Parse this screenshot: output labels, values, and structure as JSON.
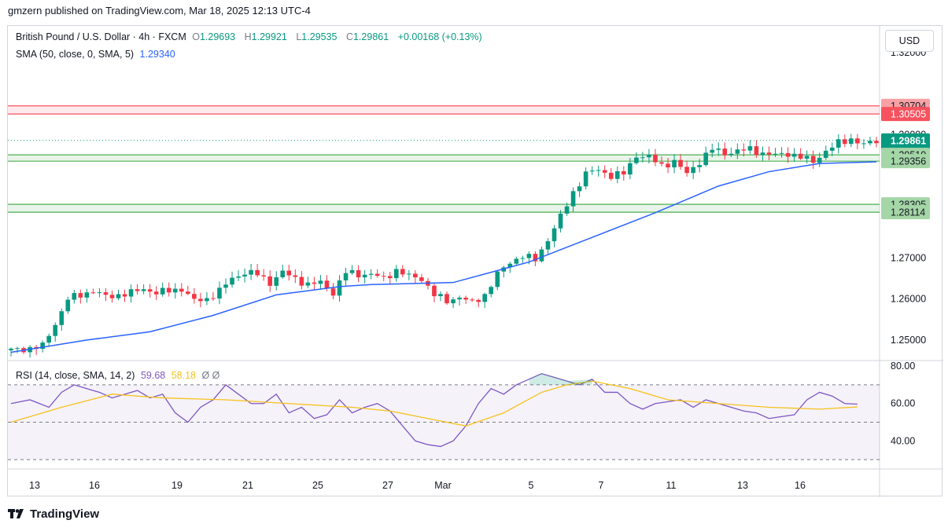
{
  "header": {
    "publisher_text": "gmzern published on TradingView.com, Mar 18, 2025 12:13 UTC-4"
  },
  "legend": {
    "symbol": "British Pound / U.S. Dollar · 4h · FXCM",
    "open_label": "O",
    "open": "1.29693",
    "high_label": "H",
    "high": "1.29921",
    "low_label": "L",
    "low": "1.29535",
    "close_label": "C",
    "close": "1.29861",
    "change": "+0.00168 (+0.13%)",
    "sma_label": "SMA (50, close, 0, SMA, 5)",
    "sma_value": "1.29340",
    "rsi_label": "RSI (14, close, SMA, 14, 2)",
    "rsi_value": "59.68",
    "rsi_sma_value": "58.18",
    "rsi_extra": "Ø  Ø"
  },
  "currency_button": "USD",
  "price_axis": {
    "ticks": [
      "1.32000",
      "1.27000",
      "1.26000",
      "1.25000"
    ],
    "hidden_tick": "1.30000",
    "labels": [
      {
        "text": "1.30704",
        "bg": "#f7a1a4",
        "color": "#131722",
        "price": 1.30704
      },
      {
        "text": "1.30505",
        "bg": "#f7525f",
        "color": "#ffffff",
        "price": 1.30505
      },
      {
        "text": "1.29861",
        "bg": "#089981",
        "color": "#ffffff",
        "price": 1.29861
      },
      {
        "text": "46:58",
        "bg": "#089981",
        "color": "#ffffff",
        "price": 1.2957
      },
      {
        "text": "1.29510",
        "bg": "#a5d6a7",
        "color": "#131722",
        "price": 1.2951
      },
      {
        "text": "1.29356",
        "bg": "#a5d6a7",
        "color": "#131722",
        "price": 1.29356
      },
      {
        "text": "1.28305",
        "bg": "#a5d6a7",
        "color": "#131722",
        "price": 1.28305
      },
      {
        "text": "1.28114",
        "bg": "#a5d6a7",
        "color": "#131722",
        "price": 1.28114
      }
    ]
  },
  "rsi_axis": {
    "ticks": [
      "80.00",
      "60.00",
      "40.00"
    ]
  },
  "time_axis": {
    "labels": [
      "13",
      "16",
      "19",
      "21",
      "25",
      "27",
      "Mar",
      "5",
      "7",
      "11",
      "13",
      "16"
    ]
  },
  "colors": {
    "up": "#089981",
    "down": "#f23645",
    "sma": "#2962ff",
    "rsi": "#7e57c2",
    "rsi_sma": "#f7c21b",
    "red_zone": "#f7525f",
    "green_zone": "#4caf50"
  },
  "chart_data": {
    "type": "candlestick",
    "symbol": "GBPUSD",
    "timeframe": "4h",
    "ylim": [
      1.245,
      1.3265
    ],
    "zones": [
      {
        "from": 1.30505,
        "to": 1.30704,
        "color": "red"
      },
      {
        "from": 1.29356,
        "to": 1.2951,
        "color": "green"
      },
      {
        "from": 1.28114,
        "to": 1.28305,
        "color": "green"
      }
    ],
    "last_close": 1.29861,
    "price_path": [
      [
        0,
        1.2475
      ],
      [
        3,
        1.248
      ],
      [
        5,
        1.2485
      ],
      [
        7,
        1.254
      ],
      [
        9,
        1.26
      ],
      [
        11,
        1.261
      ],
      [
        13,
        1.262
      ],
      [
        15,
        1.2605
      ],
      [
        17,
        1.261
      ],
      [
        19,
        1.2615
      ],
      [
        21,
        1.2625
      ],
      [
        23,
        1.2615
      ],
      [
        25,
        1.262
      ],
      [
        27,
        1.2625
      ],
      [
        29,
        1.2595
      ],
      [
        31,
        1.26
      ],
      [
        33,
        1.262
      ],
      [
        35,
        1.265
      ],
      [
        37,
        1.2665
      ],
      [
        39,
        1.266
      ],
      [
        41,
        1.264
      ],
      [
        43,
        1.2665
      ],
      [
        45,
        1.265
      ],
      [
        47,
        1.2635
      ],
      [
        49,
        1.264
      ],
      [
        51,
        1.2615
      ],
      [
        53,
        1.2665
      ],
      [
        55,
        1.266
      ],
      [
        57,
        1.266
      ],
      [
        59,
        1.265
      ],
      [
        61,
        1.267
      ],
      [
        63,
        1.2655
      ],
      [
        65,
        1.265
      ],
      [
        67,
        1.261
      ],
      [
        69,
        1.2595
      ],
      [
        71,
        1.2605
      ],
      [
        73,
        1.259
      ],
      [
        75,
        1.261
      ],
      [
        77,
        1.266
      ],
      [
        79,
        1.269
      ],
      [
        81,
        1.2705
      ],
      [
        83,
        1.2695
      ],
      [
        85,
        1.2745
      ],
      [
        87,
        1.28
      ],
      [
        89,
        1.286
      ],
      [
        91,
        1.2905
      ],
      [
        93,
        1.2915
      ],
      [
        95,
        1.29
      ],
      [
        97,
        1.2905
      ],
      [
        99,
        1.295
      ],
      [
        101,
        1.2945
      ],
      [
        103,
        1.2925
      ],
      [
        105,
        1.2935
      ],
      [
        107,
        1.2905
      ],
      [
        109,
        1.2935
      ],
      [
        111,
        1.2965
      ],
      [
        113,
        1.2955
      ],
      [
        115,
        1.296
      ],
      [
        117,
        1.2965
      ],
      [
        119,
        1.2955
      ],
      [
        121,
        1.295
      ],
      [
        123,
        1.2955
      ],
      [
        125,
        1.2945
      ],
      [
        127,
        1.2935
      ],
      [
        129,
        1.296
      ],
      [
        131,
        1.298
      ],
      [
        133,
        1.299
      ],
      [
        135,
        1.2975
      ],
      [
        137,
        1.2986
      ]
    ],
    "sma50_path": [
      [
        0,
        1.247
      ],
      [
        12,
        1.25
      ],
      [
        22,
        1.252
      ],
      [
        32,
        1.256
      ],
      [
        42,
        1.261
      ],
      [
        52,
        1.263
      ],
      [
        57,
        1.2635
      ],
      [
        70,
        1.264
      ],
      [
        82,
        1.269
      ],
      [
        92,
        1.275
      ],
      [
        102,
        1.281
      ],
      [
        112,
        1.2875
      ],
      [
        120,
        1.291
      ],
      [
        128,
        1.293
      ],
      [
        137,
        1.2934
      ]
    ],
    "rsi": {
      "levels": [
        70,
        50,
        30
      ],
      "ylim": [
        25,
        83
      ],
      "path": [
        [
          0,
          60
        ],
        [
          3,
          62
        ],
        [
          6,
          58
        ],
        [
          8,
          66
        ],
        [
          10,
          70
        ],
        [
          12,
          68
        ],
        [
          14,
          66
        ],
        [
          16,
          63
        ],
        [
          18,
          65
        ],
        [
          20,
          67
        ],
        [
          22,
          63
        ],
        [
          24,
          65
        ],
        [
          26,
          55
        ],
        [
          28,
          50
        ],
        [
          30,
          58
        ],
        [
          32,
          62
        ],
        [
          34,
          70
        ],
        [
          36,
          65
        ],
        [
          38,
          60
        ],
        [
          40,
          60
        ],
        [
          42,
          65
        ],
        [
          44,
          55
        ],
        [
          46,
          58
        ],
        [
          48,
          52
        ],
        [
          50,
          54
        ],
        [
          52,
          62
        ],
        [
          54,
          55
        ],
        [
          56,
          58
        ],
        [
          58,
          60
        ],
        [
          60,
          56
        ],
        [
          62,
          48
        ],
        [
          64,
          40
        ],
        [
          66,
          38
        ],
        [
          68,
          37
        ],
        [
          70,
          40
        ],
        [
          72,
          48
        ],
        [
          74,
          60
        ],
        [
          76,
          68
        ],
        [
          78,
          65
        ],
        [
          80,
          70
        ],
        [
          82,
          73
        ],
        [
          84,
          76
        ],
        [
          86,
          74
        ],
        [
          88,
          72
        ],
        [
          90,
          70
        ],
        [
          92,
          73
        ],
        [
          94,
          66
        ],
        [
          96,
          66
        ],
        [
          98,
          60
        ],
        [
          100,
          57
        ],
        [
          102,
          60
        ],
        [
          104,
          61
        ],
        [
          106,
          62
        ],
        [
          108,
          58
        ],
        [
          110,
          62
        ],
        [
          112,
          60
        ],
        [
          114,
          58
        ],
        [
          116,
          56
        ],
        [
          118,
          55
        ],
        [
          120,
          52
        ],
        [
          122,
          53
        ],
        [
          124,
          54
        ],
        [
          126,
          62
        ],
        [
          128,
          66
        ],
        [
          130,
          64
        ],
        [
          132,
          60
        ],
        [
          134,
          59.68
        ]
      ],
      "sma_path": [
        [
          0,
          50
        ],
        [
          8,
          58
        ],
        [
          16,
          65
        ],
        [
          24,
          63
        ],
        [
          34,
          62
        ],
        [
          44,
          60
        ],
        [
          54,
          58
        ],
        [
          60,
          56
        ],
        [
          66,
          52
        ],
        [
          72,
          48
        ],
        [
          78,
          55
        ],
        [
          84,
          66
        ],
        [
          88,
          70
        ],
        [
          92,
          72
        ],
        [
          98,
          68
        ],
        [
          104,
          62
        ],
        [
          112,
          60
        ],
        [
          120,
          58
        ],
        [
          128,
          57
        ],
        [
          134,
          58.18
        ]
      ]
    }
  }
}
